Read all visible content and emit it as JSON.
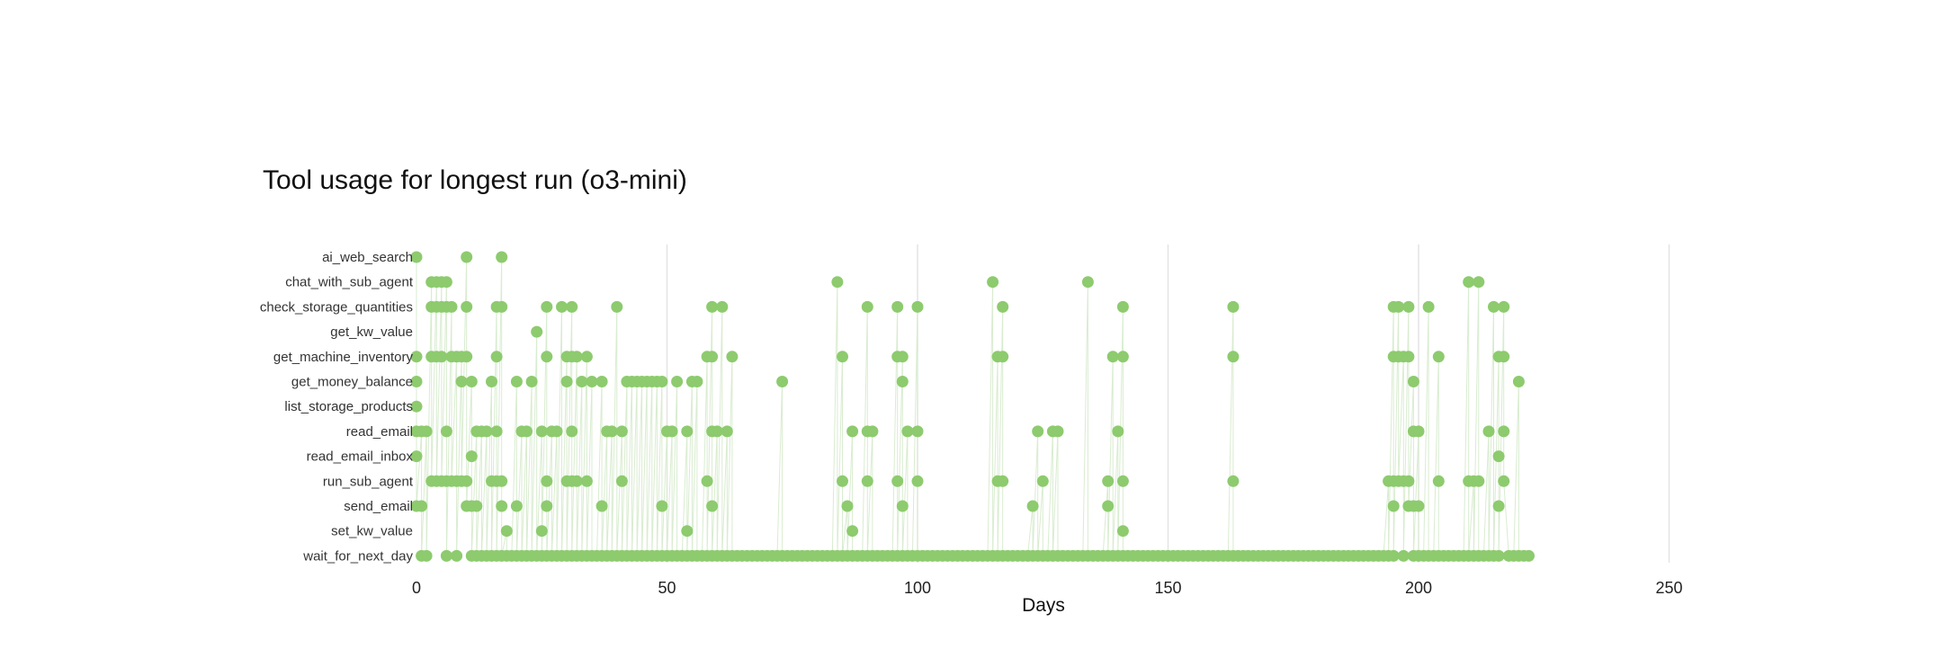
{
  "chart_data": {
    "type": "scatter",
    "title": "Tool usage for longest run (o3-mini)",
    "xlabel": "Days",
    "ylabel": "",
    "xlim": [
      0,
      275
    ],
    "xticks": [
      0,
      50,
      100,
      150,
      200,
      250
    ],
    "grid": "vertical",
    "marker_color": "#8dcb6e",
    "line_color": "#d9ecd0",
    "grid_color": "#e4e4e4",
    "categories": [
      "ai_web_search",
      "chat_with_sub_agent",
      "check_storage_quantities",
      "get_kw_value",
      "get_machine_inventory",
      "get_money_balance",
      "list_storage_products",
      "read_email",
      "read_email_inbox",
      "run_sub_agent",
      "send_email",
      "set_kw_value",
      "wait_for_next_day"
    ],
    "series": [
      {
        "category": "ai_web_search",
        "x": [
          0,
          10,
          17
        ]
      },
      {
        "category": "chat_with_sub_agent",
        "x": [
          3,
          4,
          5,
          6,
          84,
          115,
          134,
          210,
          212
        ]
      },
      {
        "category": "check_storage_quantities",
        "x": [
          3,
          4,
          5,
          6,
          7,
          10,
          16,
          17,
          26,
          29,
          31,
          40,
          59,
          61,
          90,
          96,
          100,
          117,
          141,
          163,
          195,
          196,
          198,
          202,
          215,
          217
        ]
      },
      {
        "category": "get_kw_value",
        "x": [
          24
        ]
      },
      {
        "category": "get_machine_inventory",
        "x": [
          0,
          3,
          4,
          5,
          7,
          8,
          9,
          10,
          16,
          26,
          30,
          31,
          32,
          34,
          58,
          59,
          63,
          85,
          96,
          97,
          116,
          117,
          139,
          141,
          163,
          195,
          196,
          197,
          198,
          204,
          216,
          217
        ]
      },
      {
        "category": "get_money_balance",
        "x": [
          0,
          9,
          11,
          15,
          20,
          23,
          30,
          33,
          35,
          37,
          42,
          43,
          44,
          45,
          46,
          47,
          48,
          49,
          52,
          55,
          56,
          73,
          97,
          199,
          220
        ]
      },
      {
        "category": "list_storage_products",
        "x": [
          0
        ]
      },
      {
        "category": "read_email",
        "x": [
          0,
          1,
          2,
          6,
          12,
          13,
          14,
          16,
          21,
          22,
          25,
          27,
          28,
          31,
          38,
          39,
          41,
          50,
          51,
          54,
          59,
          60,
          62,
          87,
          90,
          91,
          98,
          100,
          124,
          127,
          128,
          140,
          199,
          200,
          214,
          217
        ]
      },
      {
        "category": "read_email_inbox",
        "x": [
          0,
          11,
          216
        ]
      },
      {
        "category": "run_sub_agent",
        "x": [
          3,
          4,
          5,
          6,
          7,
          8,
          9,
          10,
          15,
          16,
          17,
          26,
          30,
          31,
          32,
          34,
          41,
          58,
          85,
          90,
          96,
          100,
          116,
          117,
          125,
          138,
          141,
          163,
          194,
          195,
          196,
          197,
          198,
          204,
          210,
          211,
          212,
          217
        ]
      },
      {
        "category": "send_email",
        "x": [
          0,
          1,
          10,
          11,
          12,
          17,
          20,
          26,
          37,
          49,
          59,
          86,
          97,
          123,
          138,
          195,
          198,
          199,
          200,
          216
        ]
      },
      {
        "category": "set_kw_value",
        "x": [
          18,
          25,
          54,
          87,
          141
        ]
      },
      {
        "category": "wait_for_next_day",
        "x": [
          1,
          2,
          6,
          8,
          11,
          12,
          13,
          14,
          15,
          16,
          17,
          18,
          19,
          20,
          21,
          22,
          23,
          24,
          25,
          26,
          27,
          28,
          29,
          30,
          31,
          32,
          33,
          34,
          35,
          36,
          37,
          38,
          39,
          40,
          41,
          42,
          43,
          44,
          45,
          46,
          47,
          48,
          49,
          50,
          51,
          52,
          53,
          54,
          55,
          56,
          57,
          58,
          59,
          60,
          61,
          62,
          63,
          64,
          65,
          66,
          67,
          68,
          69,
          70,
          71,
          72,
          73,
          74,
          75,
          76,
          77,
          78,
          79,
          80,
          81,
          82,
          83,
          84,
          85,
          86,
          87,
          88,
          89,
          90,
          91,
          92,
          93,
          94,
          95,
          96,
          97,
          98,
          99,
          100,
          101,
          102,
          103,
          104,
          105,
          106,
          107,
          108,
          109,
          110,
          111,
          112,
          113,
          114,
          115,
          116,
          117,
          118,
          119,
          120,
          121,
          122,
          123,
          124,
          125,
          126,
          127,
          128,
          129,
          130,
          131,
          132,
          133,
          134,
          135,
          136,
          137,
          138,
          139,
          140,
          141,
          142,
          143,
          144,
          145,
          146,
          147,
          148,
          149,
          150,
          151,
          152,
          153,
          154,
          155,
          156,
          157,
          158,
          159,
          160,
          161,
          162,
          163,
          164,
          165,
          166,
          167,
          168,
          169,
          170,
          171,
          172,
          173,
          174,
          175,
          176,
          177,
          178,
          179,
          180,
          181,
          182,
          183,
          184,
          185,
          186,
          187,
          188,
          189,
          190,
          191,
          192,
          193,
          194,
          195,
          197,
          199,
          200,
          201,
          202,
          203,
          204,
          205,
          206,
          207,
          208,
          209,
          210,
          211,
          212,
          213,
          214,
          215,
          216,
          218,
          219,
          220,
          221,
          222
        ]
      }
    ]
  }
}
